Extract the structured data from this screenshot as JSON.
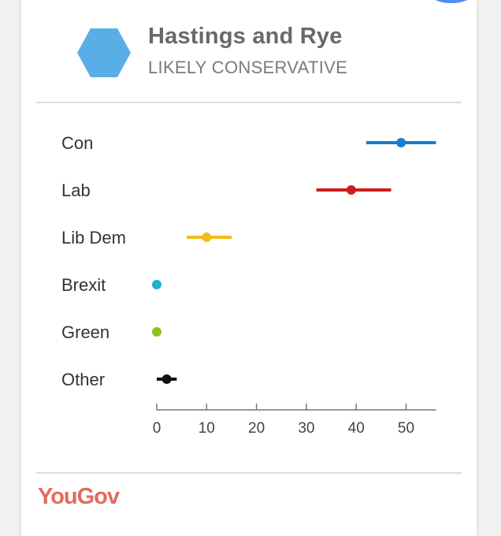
{
  "header": {
    "title": "Hastings and Rye",
    "subtitle": "LIKELY CONSERVATIVE",
    "hex_color": "#5aaee8"
  },
  "chart_data": {
    "type": "scatter",
    "categories": [
      "Con",
      "Lab",
      "Lib Dem",
      "Brexit",
      "Green",
      "Other"
    ],
    "series": [
      {
        "estimate": 49,
        "low": 42,
        "high": 56,
        "color": "#1a7dcf"
      },
      {
        "estimate": 39,
        "low": 32,
        "high": 47,
        "color": "#d11a1a"
      },
      {
        "estimate": 10,
        "low": 6,
        "high": 15,
        "color": "#f3bc1b"
      },
      {
        "estimate": 0,
        "low": 0,
        "high": 0,
        "color": "#1fb1c9"
      },
      {
        "estimate": 0,
        "low": 0,
        "high": 0,
        "color": "#8ec21c"
      },
      {
        "estimate": 2,
        "low": 0,
        "high": 4,
        "color": "#111111"
      }
    ],
    "xticks": [
      0,
      10,
      20,
      30,
      40,
      50
    ],
    "xlim": [
      0,
      56
    ],
    "grid": false
  },
  "footer": {
    "brand": "YouGov",
    "brand_color": "#e36b5a"
  }
}
